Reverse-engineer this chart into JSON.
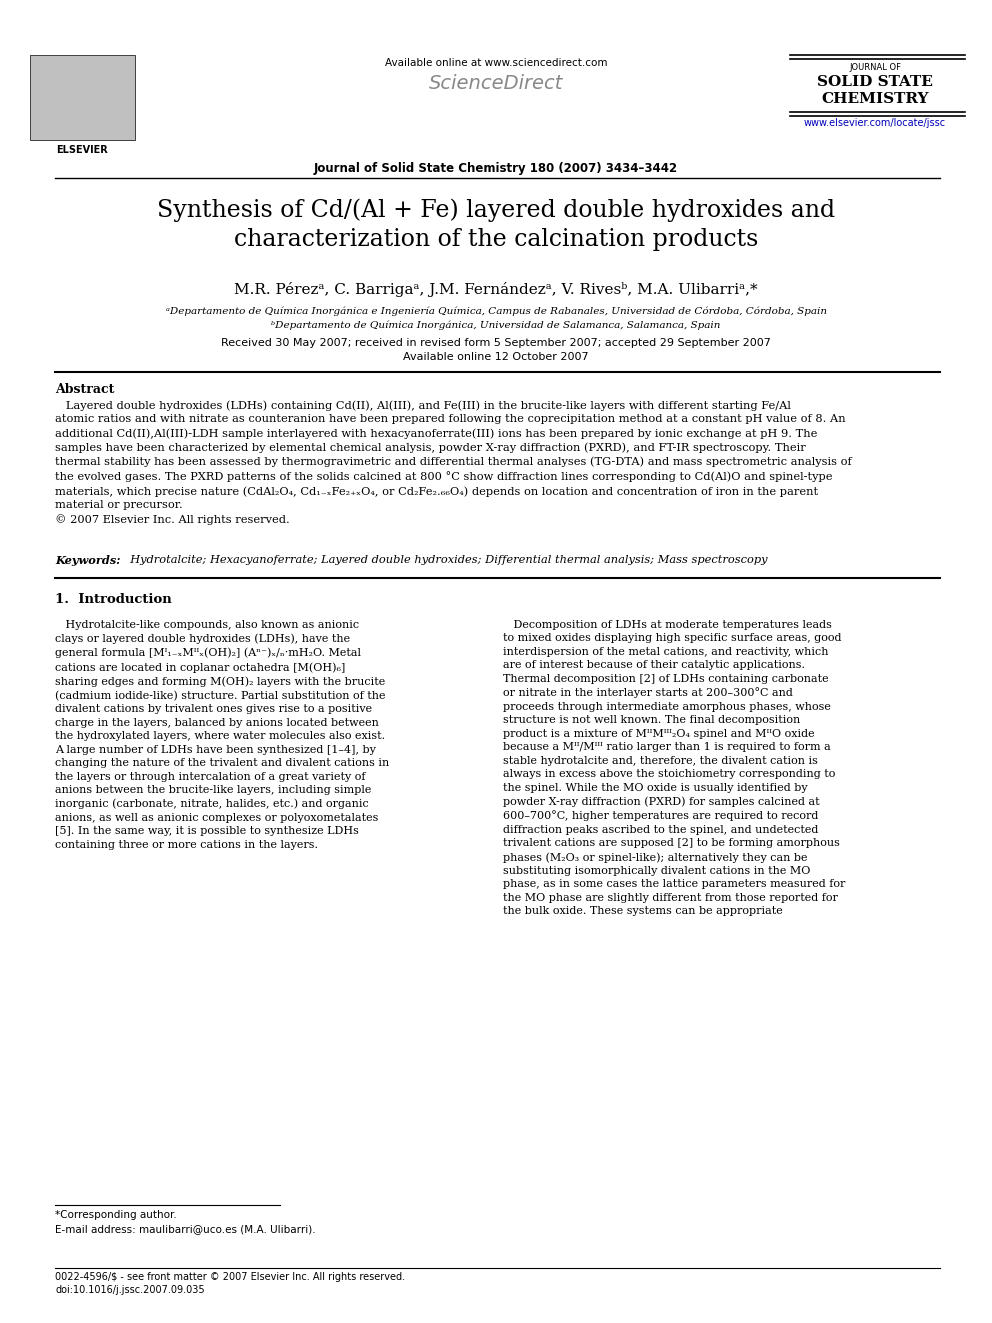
{
  "bg_color": "#ffffff",
  "page_width": 9.92,
  "page_height": 13.23,
  "dpi": 100,
  "header": {
    "available_online": "Available online at www.sciencedirect.com",
    "sciencedirect": "ScienceDirect",
    "journal_name_top": "JOURNAL OF",
    "journal_name_1": "SOLID STATE",
    "journal_name_2": "CHEMISTRY",
    "journal_issue": "Journal of Solid State Chemistry 180 (2007) 3434–3442",
    "url": "www.elsevier.com/locate/jssc",
    "url_color": "#0000bb",
    "elsevier_text": "ELSEVIER"
  },
  "title_line1": "Synthesis of Cd/(Al + Fe) layered double hydroxides and",
  "title_line2": "characterization of the calcination products",
  "authors": "M.R. Pérezᵃ, C. Barrigaᵃ, J.M. Fernándezᵃ, V. Rivesᵇ, M.A. Ulibarriᵃ,*",
  "affil_a": "ᵃDepartamento de Química Inorgánica e Ingeniería Química, Campus de Rabanales, Universidad de Córdoba, Córdoba, Spain",
  "affil_b": "ᵇDepartamento de Química Inorgánica, Universidad de Salamanca, Salamanca, Spain",
  "received": "Received 30 May 2007; received in revised form 5 September 2007; accepted 29 September 2007",
  "available_online_date": "Available online 12 October 2007",
  "abstract_title": "Abstract",
  "abstract_body": "   Layered double hydroxides (LDHs) containing Cd(II), Al(III), and Fe(III) in the brucite-like layers with different starting Fe/Al\natomic ratios and with nitrate as counteranion have been prepared following the coprecipitation method at a constant pH value of 8. An\nadditional Cd(II),Al(III)-LDH sample interlayered with hexacyanoferrate(III) ions has been prepared by ionic exchange at pH 9. The\nsamples have been characterized by elemental chemical analysis, powder X-ray diffraction (PXRD), and FT-IR spectroscopy. Their\nthermal stability has been assessed by thermogravimetric and differential thermal analyses (TG-DTA) and mass spectrometric analysis of\nthe evolved gases. The PXRD patterns of the solids calcined at 800 °C show diffraction lines corresponding to Cd(Al)O and spinel-type\nmaterials, which precise nature (CdAl₂O₄, Cd₁₋ₓFe₂₊ₓO₄, or Cd₂Fe₂.₆₆O₄) depends on location and concentration of iron in the parent\nmaterial or precursor.\n© 2007 Elsevier Inc. All rights reserved.",
  "keywords_label": "Keywords:",
  "keywords_text": "  Hydrotalcite; Hexacyanoferrate; Layered double hydroxides; Differential thermal analysis; Mass spectroscopy",
  "section1_title": "1.  Introduction",
  "intro_left": "   Hydrotalcite-like compounds, also known as anionic\nclays or layered double hydroxides (LDHs), have the\ngeneral formula [Mᴵ₁₋ₓMᴵᴵₓ(OH)₂] (Aⁿ⁻)ₓ/ₙ·mH₂O. Metal\ncations are located in coplanar octahedra [M(OH)₆]\nsharing edges and forming M(OH)₂ layers with the brucite\n(cadmium iodide-like) structure. Partial substitution of the\ndivalent cations by trivalent ones gives rise to a positive\ncharge in the layers, balanced by anions located between\nthe hydroxylated layers, where water molecules also exist.\nA large number of LDHs have been synthesized [1–4], by\nchanging the nature of the trivalent and divalent cations in\nthe layers or through intercalation of a great variety of\nanions between the brucite-like layers, including simple\ninorganic (carbonate, nitrate, halides, etc.) and organic\nanions, as well as anionic complexes or polyoxometalates\n[5]. In the same way, it is possible to synthesize LDHs\ncontaining three or more cations in the layers.",
  "intro_right": "   Decomposition of LDHs at moderate temperatures leads\nto mixed oxides displaying high specific surface areas, good\ninterdispersion of the metal cations, and reactivity, which\nare of interest because of their catalytic applications.\nThermal decomposition [2] of LDHs containing carbonate\nor nitrate in the interlayer starts at 200–300°C and\nproceeds through intermediate amorphous phases, whose\nstructure is not well known. The final decomposition\nproduct is a mixture of MᴵᴵMᴵᴵᴵ₂O₄ spinel and MᴵᴵO oxide\nbecause a Mᴵᴵ/Mᴵᴵᴵ ratio larger than 1 is required to form a\nstable hydrotalcite and, therefore, the divalent cation is\nalways in excess above the stoichiometry corresponding to\nthe spinel. While the MO oxide is usually identified by\npowder X-ray diffraction (PXRD) for samples calcined at\n600–700°C, higher temperatures are required to record\ndiffraction peaks ascribed to the spinel, and undetected\ntrivalent cations are supposed [2] to be forming amorphous\nphases (M₂O₃ or spinel-like); alternatively they can be\nsubstituting isomorphically divalent cations in the MO\nphase, as in some cases the lattice parameters measured for\nthe MO phase are slightly different from those reported for\nthe bulk oxide. These systems can be appropriate",
  "footnote_star": "*Corresponding author.",
  "footnote_email": "E-mail address: maulibarri@uco.es (M.A. Ulibarri).",
  "bottom_line1": "0022-4596/$ - see front matter © 2007 Elsevier Inc. All rights reserved.",
  "bottom_line2": "doi:10.1016/j.jssc.2007.09.035"
}
